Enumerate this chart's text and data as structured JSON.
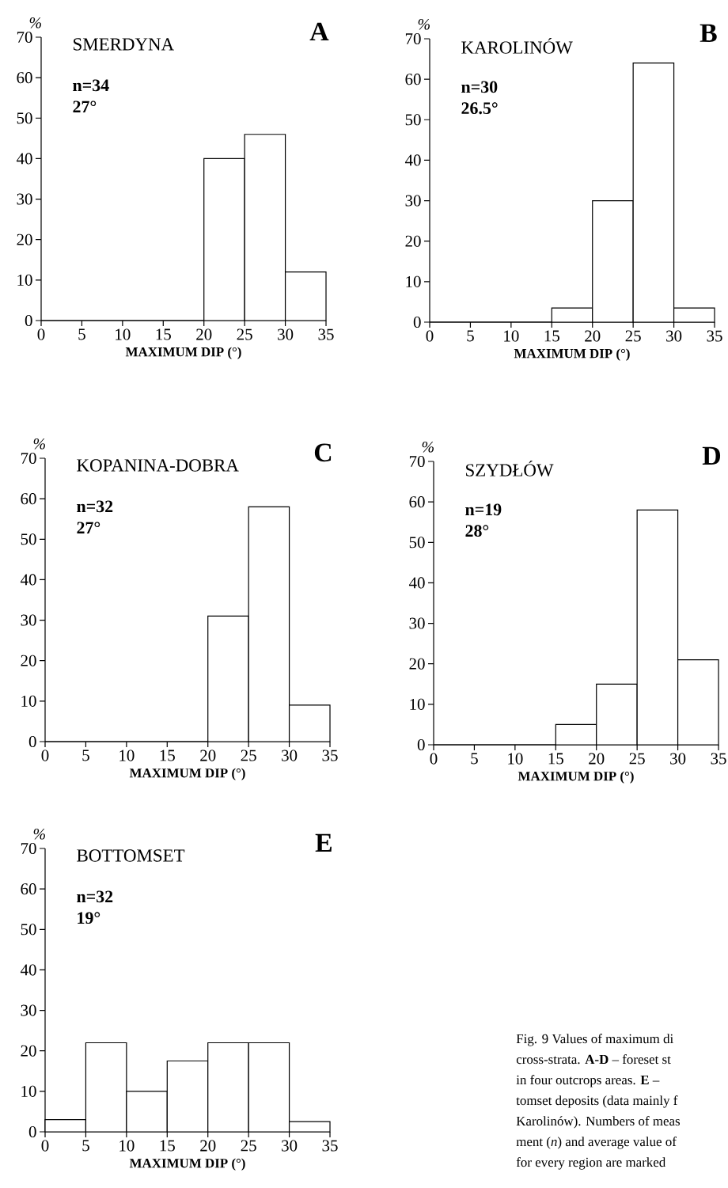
{
  "chart_data": [
    {
      "type": "histogram",
      "title": "SMERDYNA",
      "xlabel": "MAXIMUM DIP (°)",
      "ylabel": "%",
      "color": "#ffffff",
      "bins": [
        0,
        5,
        10,
        15,
        20,
        25,
        30,
        35
      ],
      "values": [
        0,
        0,
        0,
        0,
        40,
        46,
        12
      ],
      "xlim": [
        0,
        35
      ],
      "ylim": [
        0,
        70
      ],
      "xticks": [
        0,
        5,
        10,
        15,
        20,
        25,
        30,
        35
      ],
      "yticks": [
        0,
        10,
        20,
        30,
        40,
        50,
        60,
        70
      ],
      "annotations": [
        "A",
        "n=34",
        "27°"
      ]
    },
    {
      "type": "histogram",
      "title": "KAROLINÓW",
      "xlabel": "MAXIMUM DIP (°)",
      "ylabel": "%",
      "color": "#ffffff",
      "bins": [
        0,
        5,
        10,
        15,
        20,
        25,
        30,
        35
      ],
      "values": [
        0,
        0,
        0,
        3.5,
        30,
        64,
        3.5
      ],
      "xlim": [
        0,
        35
      ],
      "ylim": [
        0,
        70
      ],
      "xticks": [
        0,
        5,
        10,
        15,
        20,
        25,
        30,
        35
      ],
      "yticks": [
        0,
        10,
        20,
        30,
        40,
        50,
        60,
        70
      ],
      "annotations": [
        "B",
        "n=30",
        "26.5°"
      ]
    },
    {
      "type": "histogram",
      "title": "KOPANINA-DOBRA",
      "xlabel": "MAXIMUM DIP (°)",
      "ylabel": "%",
      "color": "#ffffff",
      "bins": [
        0,
        5,
        10,
        15,
        20,
        25,
        30,
        35
      ],
      "values": [
        0,
        0,
        0,
        0,
        31,
        58,
        9
      ],
      "xlim": [
        0,
        35
      ],
      "ylim": [
        0,
        70
      ],
      "xticks": [
        0,
        5,
        10,
        15,
        20,
        25,
        30,
        35
      ],
      "yticks": [
        0,
        10,
        20,
        30,
        40,
        50,
        60,
        70
      ],
      "annotations": [
        "C",
        "n=32",
        "27°"
      ]
    },
    {
      "type": "histogram",
      "title": "SZYDŁÓW",
      "xlabel": "MAXIMUM DIP (°)",
      "ylabel": "%",
      "color": "#ffffff",
      "bins": [
        0,
        5,
        10,
        15,
        20,
        25,
        30,
        35
      ],
      "values": [
        0,
        0,
        0,
        5,
        15,
        58,
        21
      ],
      "xlim": [
        0,
        35
      ],
      "ylim": [
        0,
        70
      ],
      "xticks": [
        0,
        5,
        10,
        15,
        20,
        25,
        30,
        35
      ],
      "yticks": [
        0,
        10,
        20,
        30,
        40,
        50,
        60,
        70
      ],
      "annotations": [
        "D",
        "n=19",
        "28°"
      ]
    },
    {
      "type": "histogram",
      "title": "BOTTOMSET",
      "xlabel": "MAXIMUM DIP (°)",
      "ylabel": "%",
      "color": "#ffffff",
      "bins": [
        0,
        5,
        10,
        15,
        20,
        25,
        30,
        35
      ],
      "values": [
        3,
        22,
        10,
        17.5,
        22,
        22,
        2.5
      ],
      "xlim": [
        0,
        35
      ],
      "ylim": [
        0,
        70
      ],
      "xticks": [
        0,
        5,
        10,
        15,
        20,
        25,
        30,
        35
      ],
      "yticks": [
        0,
        10,
        20,
        30,
        40,
        50,
        60,
        70
      ],
      "annotations": [
        "E",
        "n=32",
        "19°"
      ]
    },
    {
      "type": "other",
      "annotations": [
        "Fig. 9 Values of maximum di",
        "cross-strata. **A-D** – foreset st",
        "in four outcrops areas. **E** –",
        "tomset deposits (data mainly f",
        "Karolinów). Numbers of meas",
        "ment (*n*) and average value of",
        "for every region are marked"
      ]
    }
  ]
}
